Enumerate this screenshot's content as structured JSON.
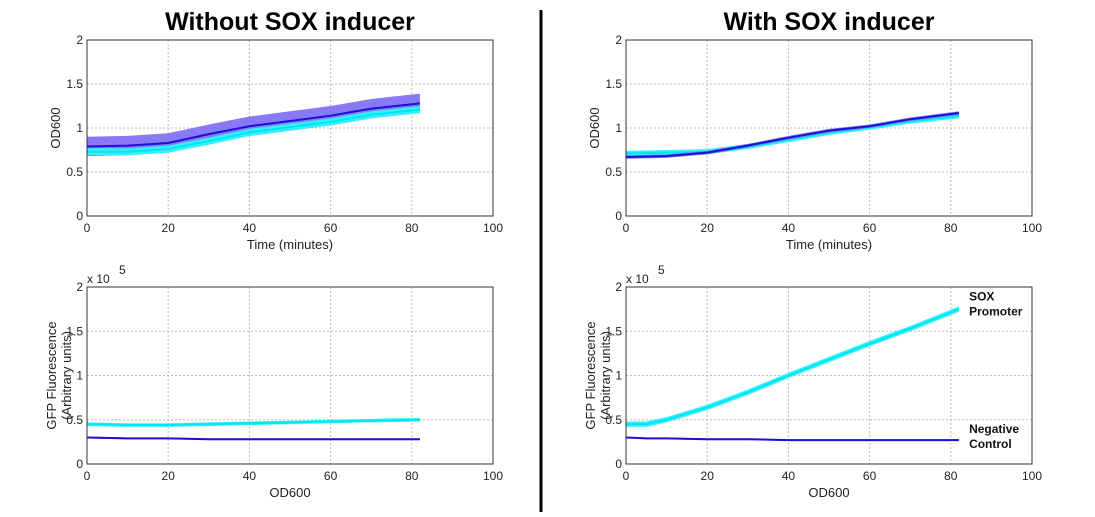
{
  "panel_titles": [
    "Without SOX inducer",
    "With SOX inducer"
  ],
  "colors": {
    "promoter": "#00e5f0",
    "promoter_band": "#33f0ff",
    "control": "#1a10d8",
    "control_band": "#7b6cf5"
  },
  "chart_data": [
    {
      "type": "line",
      "panel": "top-left",
      "xlabel": "Time (minutes)",
      "ylabel": "OD600",
      "xlim": [
        0,
        100
      ],
      "ylim": [
        0,
        2
      ],
      "xticks": [
        "0",
        "20",
        "40",
        "60",
        "80",
        "100"
      ],
      "yticks": [
        "0",
        "0.5",
        "1",
        "1.5",
        "2"
      ],
      "grid": true,
      "x": [
        0,
        10,
        20,
        30,
        40,
        50,
        60,
        70,
        82
      ],
      "series": [
        {
          "name": "Negative Control",
          "values": [
            0.79,
            0.8,
            0.83,
            0.93,
            1.02,
            1.08,
            1.14,
            1.22,
            1.28
          ],
          "band": 0.11
        },
        {
          "name": "SOX Promoter",
          "values": [
            0.73,
            0.73,
            0.76,
            0.85,
            0.95,
            1.01,
            1.07,
            1.15,
            1.21
          ],
          "band": 0.04
        }
      ]
    },
    {
      "type": "line",
      "panel": "top-right",
      "xlabel": "Time (minutes)",
      "ylabel": "OD600",
      "xlim": [
        0,
        100
      ],
      "ylim": [
        0,
        2
      ],
      "xticks": [
        "0",
        "20",
        "40",
        "60",
        "80",
        "100"
      ],
      "yticks": [
        "0",
        "0.5",
        "1",
        "1.5",
        "2"
      ],
      "grid": true,
      "x": [
        0,
        10,
        20,
        30,
        40,
        50,
        60,
        70,
        82
      ],
      "series": [
        {
          "name": "SOX Promoter",
          "values": [
            0.71,
            0.72,
            0.73,
            0.79,
            0.87,
            0.95,
            1.01,
            1.08,
            1.14
          ],
          "band": 0.03
        },
        {
          "name": "Negative Control",
          "values": [
            0.67,
            0.68,
            0.72,
            0.8,
            0.89,
            0.97,
            1.02,
            1.1,
            1.17
          ],
          "band": 0.02
        }
      ]
    },
    {
      "type": "line",
      "panel": "bottom-left",
      "xlabel": "OD600",
      "ylabel": "GFP Fluorescence",
      "ylabel2": "(Arbitrary units)",
      "yscale_label": "x 10",
      "yscale_exp": "5",
      "xlim": [
        0,
        100
      ],
      "ylim": [
        0,
        2
      ],
      "xticks": [
        "0",
        "20",
        "40",
        "60",
        "80",
        "100"
      ],
      "yticks": [
        "0",
        "0.5",
        "1",
        "1.5",
        "2"
      ],
      "grid": true,
      "x": [
        0,
        10,
        20,
        30,
        40,
        50,
        60,
        70,
        82
      ],
      "series": [
        {
          "name": "SOX Promoter",
          "values": [
            0.45,
            0.44,
            0.44,
            0.45,
            0.46,
            0.47,
            0.48,
            0.49,
            0.5
          ],
          "band": 0.02
        },
        {
          "name": "Negative Control",
          "values": [
            0.3,
            0.29,
            0.29,
            0.28,
            0.28,
            0.28,
            0.28,
            0.28,
            0.28
          ],
          "band": 0.01
        }
      ]
    },
    {
      "type": "line",
      "panel": "bottom-right",
      "xlabel": "OD600",
      "ylabel": "GFP Fluorescence",
      "ylabel2": "(Arbitrary units)",
      "yscale_label": "x 10",
      "yscale_exp": "5",
      "xlim": [
        0,
        100
      ],
      "ylim": [
        0,
        2
      ],
      "xticks": [
        "0",
        "20",
        "40",
        "60",
        "80",
        "100"
      ],
      "yticks": [
        "0",
        "0.5",
        "1",
        "1.5",
        "2"
      ],
      "grid": true,
      "x": [
        0,
        5,
        10,
        20,
        30,
        40,
        50,
        60,
        70,
        82
      ],
      "series": [
        {
          "name": "SOX Promoter",
          "values": [
            0.45,
            0.45,
            0.5,
            0.64,
            0.81,
            1.0,
            1.18,
            1.36,
            1.53,
            1.75
          ],
          "band": 0.03
        },
        {
          "name": "Negative Control",
          "values": [
            0.3,
            0.29,
            0.29,
            0.28,
            0.28,
            0.27,
            0.27,
            0.27,
            0.27,
            0.27
          ],
          "band": 0.01
        }
      ],
      "annotations": [
        [
          "SOX",
          "Promoter"
        ],
        [
          "Negative",
          "Control"
        ]
      ]
    }
  ]
}
